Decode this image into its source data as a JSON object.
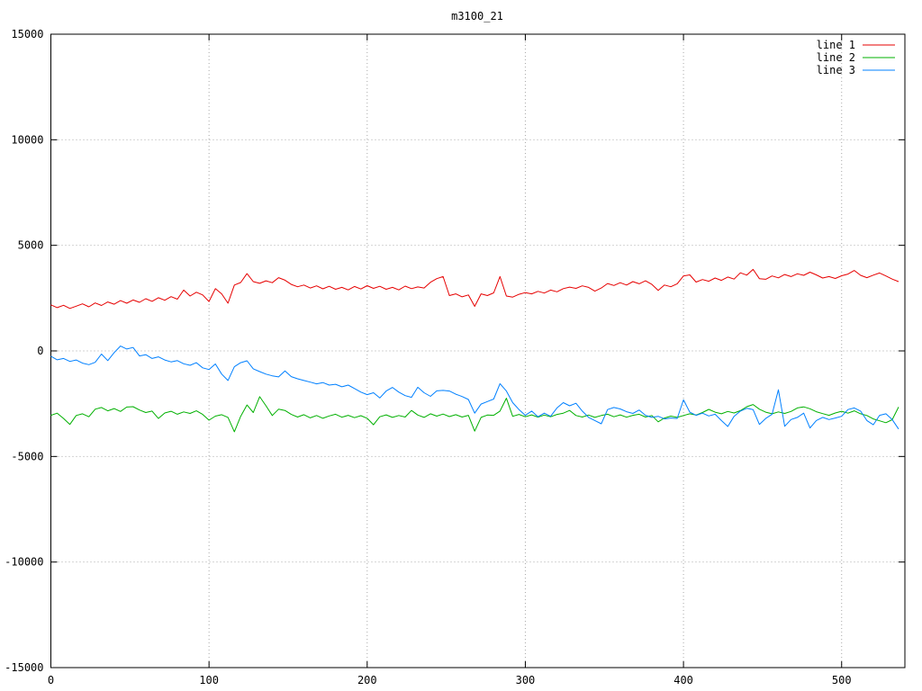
{
  "window": {
    "background": "#ffffff"
  },
  "chart_data": {
    "type": "line",
    "title": "m3100_21",
    "xlabel": "",
    "ylabel": "",
    "xlim": [
      0,
      540
    ],
    "ylim": [
      -15000,
      15000
    ],
    "x_ticks": [
      0,
      100,
      200,
      300,
      400,
      500
    ],
    "y_ticks": [
      -15000,
      -10000,
      -5000,
      0,
      5000,
      10000,
      15000
    ],
    "grid": true,
    "grid_style": "dotted",
    "grid_color": "#a8a8a8",
    "border_color": "#000000",
    "legend_position": "top-right-inside",
    "legend_entries": [
      "line 1",
      "line 2",
      "line 3"
    ],
    "series": [
      {
        "name": "line 1",
        "color": "#e60000",
        "x_step": 4,
        "y": [
          2180,
          2050,
          2160,
          2010,
          2120,
          2230,
          2090,
          2270,
          2150,
          2320,
          2210,
          2380,
          2260,
          2410,
          2300,
          2470,
          2350,
          2520,
          2400,
          2570,
          2450,
          2880,
          2600,
          2780,
          2650,
          2340,
          2950,
          2700,
          2260,
          3120,
          3240,
          3660,
          3280,
          3200,
          3320,
          3230,
          3470,
          3350,
          3150,
          3040,
          3120,
          2980,
          3080,
          2940,
          3060,
          2920,
          3010,
          2890,
          3050,
          2930,
          3090,
          2960,
          3060,
          2920,
          3010,
          2890,
          3070,
          2950,
          3030,
          2980,
          3250,
          3420,
          3520,
          2620,
          2700,
          2560,
          2650,
          2110,
          2700,
          2620,
          2750,
          3520,
          2600,
          2550,
          2680,
          2760,
          2700,
          2820,
          2740,
          2880,
          2800,
          2950,
          3020,
          2960,
          3080,
          3010,
          2830,
          2980,
          3190,
          3100,
          3230,
          3120,
          3280,
          3180,
          3320,
          3150,
          2870,
          3120,
          3040,
          3180,
          3550,
          3600,
          3260,
          3380,
          3300,
          3450,
          3340,
          3500,
          3400,
          3700,
          3590,
          3860,
          3420,
          3390,
          3550,
          3460,
          3620,
          3520,
          3650,
          3580,
          3730,
          3600,
          3450,
          3520,
          3430,
          3560,
          3640,
          3810,
          3580,
          3470,
          3590,
          3690,
          3550,
          3400,
          3280
        ]
      },
      {
        "name": "line 2",
        "color": "#00b000",
        "x_step": 4,
        "y": [
          -3050,
          -2950,
          -3200,
          -3480,
          -3060,
          -2980,
          -3120,
          -2760,
          -2680,
          -2840,
          -2730,
          -2870,
          -2660,
          -2640,
          -2800,
          -2920,
          -2850,
          -3200,
          -2940,
          -2860,
          -3000,
          -2890,
          -2960,
          -2840,
          -3010,
          -3280,
          -3090,
          -3020,
          -3150,
          -3830,
          -3100,
          -2560,
          -2920,
          -2170,
          -2600,
          -3060,
          -2760,
          -2820,
          -3010,
          -3130,
          -3020,
          -3170,
          -3060,
          -3190,
          -3080,
          -3000,
          -3140,
          -3050,
          -3160,
          -3070,
          -3190,
          -3500,
          -3120,
          -3030,
          -3150,
          -3060,
          -3130,
          -2820,
          -3040,
          -3150,
          -2980,
          -3090,
          -2990,
          -3110,
          -3020,
          -3130,
          -3050,
          -3800,
          -3150,
          -3040,
          -3050,
          -2850,
          -2240,
          -3100,
          -3010,
          -3120,
          -3030,
          -3140,
          -3040,
          -3120,
          -3010,
          -2950,
          -2820,
          -3060,
          -3130,
          -3040,
          -3150,
          -3060,
          -3000,
          -3120,
          -3030,
          -3140,
          -3050,
          -3000,
          -3130,
          -3060,
          -3360,
          -3180,
          -3090,
          -3150,
          -3060,
          -2980,
          -3040,
          -2920,
          -2770,
          -2900,
          -2980,
          -2870,
          -2940,
          -2830,
          -2640,
          -2540,
          -2760,
          -2900,
          -2980,
          -2890,
          -2960,
          -2870,
          -2700,
          -2650,
          -2740,
          -2880,
          -2970,
          -3050,
          -2940,
          -2860,
          -2950,
          -2840,
          -2980,
          -3060,
          -3220,
          -3310,
          -3400,
          -3260,
          -2660
        ]
      },
      {
        "name": "line 3",
        "color": "#0080ff",
        "x_step": 4,
        "y": [
          -250,
          -420,
          -360,
          -500,
          -430,
          -580,
          -650,
          -540,
          -150,
          -460,
          -80,
          230,
          90,
          160,
          -240,
          -180,
          -360,
          -280,
          -430,
          -520,
          -460,
          -610,
          -680,
          -560,
          -800,
          -880,
          -620,
          -1100,
          -1400,
          -750,
          -560,
          -470,
          -850,
          -980,
          -1100,
          -1180,
          -1230,
          -950,
          -1220,
          -1320,
          -1400,
          -1480,
          -1560,
          -1500,
          -1620,
          -1580,
          -1700,
          -1620,
          -1780,
          -1950,
          -2070,
          -1980,
          -2230,
          -1900,
          -1730,
          -1950,
          -2120,
          -2200,
          -1720,
          -1980,
          -2150,
          -1890,
          -1870,
          -1900,
          -2050,
          -2160,
          -2300,
          -2950,
          -2520,
          -2400,
          -2280,
          -1550,
          -1900,
          -2450,
          -2780,
          -3050,
          -2850,
          -3120,
          -2950,
          -3100,
          -2700,
          -2450,
          -2600,
          -2480,
          -2850,
          -3150,
          -3300,
          -3450,
          -2780,
          -2680,
          -2750,
          -2880,
          -2960,
          -2800,
          -3050,
          -3150,
          -3100,
          -3220,
          -3180,
          -3200,
          -2320,
          -2900,
          -3050,
          -2950,
          -3080,
          -3000,
          -3300,
          -3580,
          -3100,
          -2850,
          -2720,
          -2780,
          -3480,
          -3200,
          -3000,
          -1840,
          -3570,
          -3250,
          -3150,
          -2950,
          -3650,
          -3300,
          -3150,
          -3250,
          -3180,
          -3100,
          -2780,
          -2700,
          -2850,
          -3300,
          -3500,
          -3050,
          -2980,
          -3250,
          -3700
        ]
      }
    ]
  }
}
